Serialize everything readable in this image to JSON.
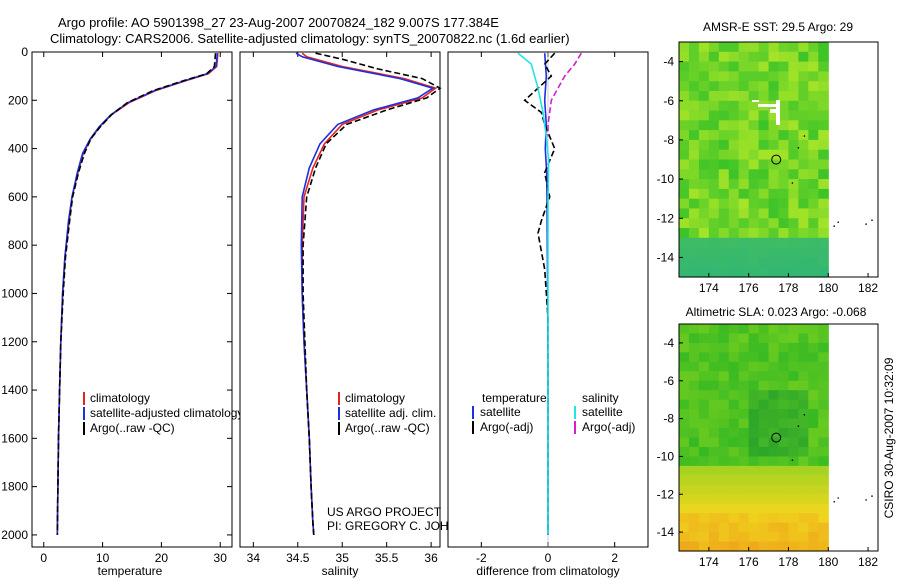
{
  "header": {
    "title_line1": "Argo profile: AO 5901398_27 23-Aug-2007 20070824_182 9.007S 177.384E",
    "title_line2": "Climatology: CARS2006. Satellite-adjusted climatology: synTS_20070822.nc (1.6d earlier)"
  },
  "colors": {
    "climatology": "#e8231b",
    "satellite": "#1d2fe0",
    "argo": "#000000",
    "sat_sal": "#22e6e6",
    "argo_sal": "#d41ecf"
  },
  "chart_data": [
    {
      "id": "temperature",
      "type": "line",
      "xlabel": "temperature",
      "ylabel": "",
      "title": "",
      "xlim": [
        -2,
        32
      ],
      "ylim": [
        2050,
        0
      ],
      "y_inverted": true,
      "xticks": [
        0,
        10,
        20,
        30
      ],
      "yticks": [
        0,
        200,
        400,
        600,
        800,
        1000,
        1200,
        1400,
        1600,
        1800,
        2000
      ],
      "series": [
        {
          "name": "climatology",
          "style": "solid",
          "x": [
            29.6,
            29.4,
            28.0,
            24.0,
            19.0,
            14.5,
            11.5,
            9.5,
            8.0,
            6.7,
            5.8,
            4.8,
            4.3,
            3.6,
            3.2,
            2.9,
            2.7,
            2.5,
            2.4,
            2.3
          ],
          "y": [
            5,
            60,
            90,
            120,
            160,
            210,
            260,
            310,
            360,
            420,
            500,
            600,
            700,
            850,
            1000,
            1200,
            1400,
            1600,
            1800,
            2000
          ]
        },
        {
          "name": "satellite-adjusted climatology",
          "style": "solid",
          "x": [
            29.5,
            29.3,
            27.8,
            23.8,
            18.8,
            14.3,
            11.4,
            9.4,
            7.9,
            6.6,
            5.7,
            4.8,
            4.2,
            3.6,
            3.2,
            2.9,
            2.7,
            2.5,
            2.4,
            2.3
          ],
          "y": [
            5,
            60,
            90,
            120,
            160,
            210,
            260,
            310,
            360,
            420,
            500,
            600,
            700,
            850,
            1000,
            1200,
            1400,
            1600,
            1800,
            2000
          ]
        },
        {
          "name": "Argo(..raw -QC)",
          "style": "dashed",
          "x": [
            29.2,
            29.0,
            27.7,
            23.6,
            18.6,
            14.2,
            11.5,
            9.6,
            8.0,
            6.9,
            5.9,
            4.9,
            4.4,
            3.7,
            3.3,
            2.9,
            2.7,
            2.5,
            2.4,
            2.3
          ],
          "y": [
            5,
            60,
            90,
            120,
            160,
            210,
            260,
            310,
            360,
            420,
            500,
            600,
            700,
            850,
            1000,
            1200,
            1400,
            1600,
            1800,
            2000
          ]
        }
      ],
      "legend": {
        "labels": [
          "climatology",
          "satellite-adjusted climatology",
          "Argo(..raw -QC)"
        ],
        "placement": "lower-center"
      }
    },
    {
      "id": "salinity",
      "type": "line",
      "xlabel": "salinity",
      "ylabel": "",
      "title": "",
      "xlim": [
        33.85,
        36.1
      ],
      "ylim": [
        2050,
        0
      ],
      "y_inverted": true,
      "xticks": [
        34,
        34.5,
        35,
        35.5,
        36
      ],
      "yticks": [],
      "series": [
        {
          "name": "climatology",
          "style": "solid",
          "x": [
            34.55,
            34.6,
            35.0,
            35.7,
            36.05,
            35.9,
            35.4,
            35.0,
            34.8,
            34.67,
            34.57,
            34.55,
            34.55,
            34.57,
            34.6,
            34.63,
            34.65,
            34.67,
            34.68
          ],
          "y": [
            5,
            20,
            60,
            110,
            150,
            190,
            240,
            300,
            380,
            480,
            600,
            800,
            1000,
            1200,
            1400,
            1600,
            1800,
            1950,
            2000
          ]
        },
        {
          "name": "satellite adj. clim.",
          "style": "solid",
          "x": [
            34.48,
            34.55,
            34.95,
            35.65,
            36.02,
            35.85,
            35.35,
            34.95,
            34.75,
            34.63,
            34.55,
            34.54,
            34.55,
            34.57,
            34.6,
            34.63,
            34.65,
            34.67,
            34.68
          ],
          "y": [
            5,
            20,
            60,
            110,
            150,
            190,
            240,
            300,
            380,
            480,
            600,
            800,
            1000,
            1200,
            1400,
            1600,
            1800,
            1950,
            2000
          ]
        },
        {
          "name": "Argo(..raw -QC)",
          "style": "dashed",
          "x": [
            34.7,
            35.0,
            35.4,
            35.9,
            36.1,
            35.95,
            35.5,
            35.05,
            34.82,
            34.7,
            34.6,
            34.56,
            34.56,
            34.58,
            34.6,
            34.63,
            34.65,
            34.67,
            34.68
          ],
          "y": [
            5,
            30,
            70,
            110,
            150,
            190,
            240,
            300,
            380,
            480,
            600,
            800,
            1000,
            1200,
            1400,
            1600,
            1800,
            1950,
            2000
          ]
        }
      ],
      "legend": {
        "labels": [
          "climatology",
          "satellite adj. clim.",
          "Argo(..raw -QC)"
        ],
        "placement": "lower-center"
      },
      "annotation": [
        "US ARGO PROJECT",
        "PI: GREGORY C. JOHNSON"
      ]
    },
    {
      "id": "difference",
      "type": "line",
      "xlabel": "difference from climatology",
      "ylabel": "",
      "title": "",
      "xlim": [
        -3,
        3
      ],
      "ylim": [
        2050,
        0
      ],
      "y_inverted": true,
      "xticks": [
        -2,
        0,
        2
      ],
      "yticks": [],
      "series": [
        {
          "name": "temperature satellite",
          "style": "solid",
          "x": [
            -0.1,
            -0.05,
            -0.1,
            -0.05,
            -0.08,
            -0.04,
            -0.03,
            -0.02,
            -0.01,
            0,
            0,
            0
          ],
          "y": [
            5,
            100,
            200,
            300,
            400,
            500,
            600,
            800,
            1000,
            1400,
            1800,
            2000
          ]
        },
        {
          "name": "temperature Argo(-adj)",
          "style": "dashed",
          "x": [
            0.2,
            -0.1,
            0.1,
            -0.7,
            -0.2,
            -0.1,
            0.2,
            -0.1,
            0.05,
            -0.2,
            -0.3,
            -0.1,
            0,
            0,
            0
          ],
          "y": [
            5,
            50,
            100,
            200,
            250,
            300,
            400,
            500,
            600,
            700,
            750,
            900,
            1100,
            1600,
            2000
          ]
        },
        {
          "name": "salinity satellite",
          "style": "solid",
          "x": [
            -0.9,
            -0.5,
            -0.3,
            -0.15,
            -0.05,
            0.02,
            0,
            0,
            0,
            0,
            0
          ],
          "y": [
            5,
            50,
            150,
            250,
            350,
            450,
            600,
            800,
            1200,
            1600,
            2000
          ]
        },
        {
          "name": "salinity Argo(-adj)",
          "style": "dashed",
          "x": [
            1.0,
            0.8,
            0.5,
            0.3,
            0.1,
            0.05,
            0,
            0
          ],
          "y": [
            5,
            50,
            100,
            150,
            200,
            250,
            300,
            350
          ]
        }
      ],
      "legend": {
        "groups": [
          "temperature",
          "salinity"
        ],
        "labels": [
          "satellite",
          "Argo(-adj)",
          "satellite",
          "Argo(-adj)"
        ],
        "placement": "lower-center"
      }
    },
    {
      "id": "sst-map",
      "type": "heatmap",
      "title": "AMSR-E SST: 29.5 Argo: 29",
      "xlim": [
        172.5,
        182.5
      ],
      "ylim": [
        -15,
        -3
      ],
      "xticks": [
        174,
        176,
        178,
        180,
        182
      ],
      "yticks": [
        -4,
        -6,
        -8,
        -10,
        -12,
        -14
      ],
      "data_extent_east": 180,
      "marker": {
        "lon": 177.384,
        "lat": -9.007
      }
    },
    {
      "id": "sla-map",
      "type": "heatmap",
      "title": "Altimetric SLA: 0.023 Argo: -0.068",
      "xlim": [
        172.5,
        182.5
      ],
      "ylim": [
        -15,
        -3
      ],
      "xticks": [
        174,
        176,
        178,
        180,
        182
      ],
      "yticks": [
        -4,
        -6,
        -8,
        -10,
        -12,
        -14
      ],
      "data_extent_east": 180,
      "marker": {
        "lon": 177.384,
        "lat": -9.007
      }
    }
  ],
  "footer_stamp": "CSIRO 30-Aug-2007 10:32:09"
}
